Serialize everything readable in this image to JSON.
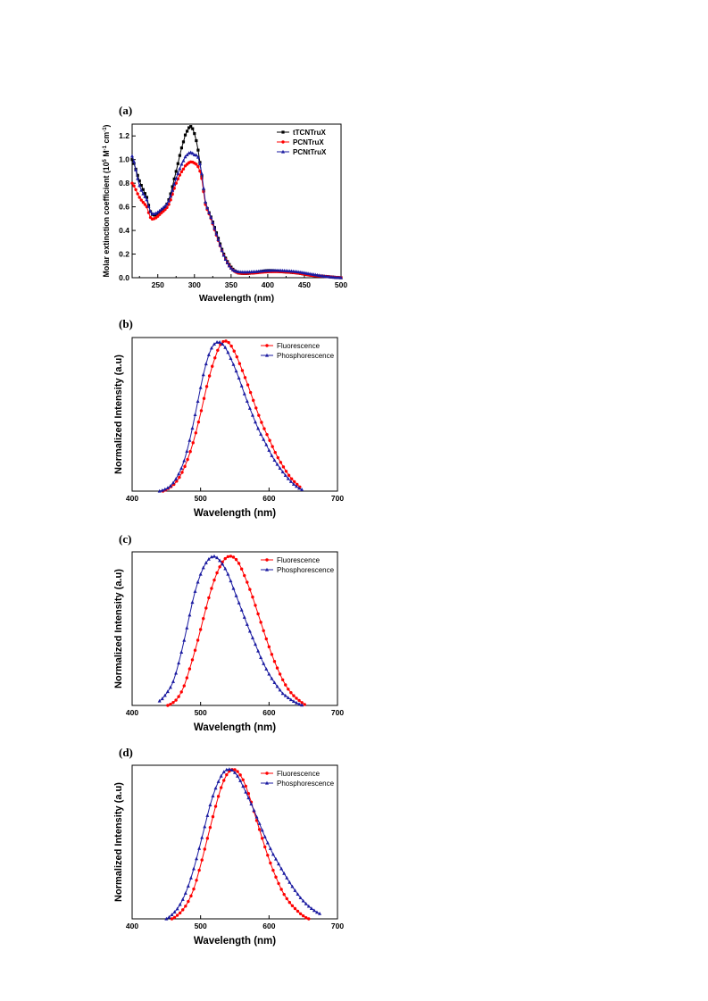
{
  "chart_data": [
    {
      "panel": "(a)",
      "type": "line",
      "xlabel": "Wavelength (nm)",
      "ylabel_main": "Molar extinction coefficient (10",
      "ylabel_sup1": "5",
      "ylabel_mid": " M",
      "ylabel_sup2": "-1",
      "ylabel_mid2": " cm",
      "ylabel_sup3": "-1",
      "ylabel_end": ")",
      "xlim": [
        215,
        500
      ],
      "ylim": [
        0,
        1.3
      ],
      "xticks": [
        250,
        300,
        350,
        400,
        450,
        500
      ],
      "yticks": [
        0.0,
        0.2,
        0.4,
        0.6,
        0.8,
        1.0,
        1.2
      ],
      "ytick_labels": [
        "0.0",
        "0.2",
        "0.4",
        "0.6",
        "0.8",
        "1.0",
        "1.2"
      ],
      "legend_position": "top-right",
      "legend_bold": true,
      "series": [
        {
          "name": "tTCNTruX",
          "color": "#000000",
          "marker": "square",
          "x": [
            215,
            225,
            235,
            240,
            245,
            255,
            265,
            275,
            285,
            290,
            295,
            300,
            305,
            310,
            315,
            320,
            330,
            340,
            350,
            360,
            380,
            400,
            420,
            440,
            460,
            480,
            500
          ],
          "y": [
            1.0,
            0.82,
            0.68,
            0.56,
            0.53,
            0.56,
            0.66,
            0.9,
            1.15,
            1.24,
            1.28,
            1.22,
            1.08,
            0.86,
            0.63,
            0.55,
            0.38,
            0.2,
            0.09,
            0.04,
            0.04,
            0.06,
            0.05,
            0.04,
            0.02,
            0.01,
            0.0
          ]
        },
        {
          "name": "PCNTruX",
          "color": "#ff0000",
          "marker": "circle",
          "x": [
            215,
            225,
            235,
            240,
            245,
            255,
            265,
            275,
            285,
            290,
            295,
            300,
            305,
            310,
            315,
            320,
            330,
            340,
            350,
            360,
            380,
            400,
            420,
            440,
            460,
            480,
            500
          ],
          "y": [
            0.8,
            0.68,
            0.6,
            0.51,
            0.5,
            0.55,
            0.62,
            0.8,
            0.92,
            0.96,
            0.98,
            0.97,
            0.94,
            0.84,
            0.62,
            0.54,
            0.36,
            0.19,
            0.08,
            0.04,
            0.04,
            0.05,
            0.05,
            0.04,
            0.02,
            0.01,
            0.0
          ]
        },
        {
          "name": "PCNtTruX",
          "color": "#1a1aa0",
          "marker": "triangle",
          "x": [
            215,
            225,
            235,
            240,
            245,
            255,
            265,
            275,
            285,
            290,
            295,
            300,
            305,
            310,
            315,
            320,
            330,
            340,
            350,
            360,
            380,
            400,
            420,
            440,
            460,
            480,
            500
          ],
          "y": [
            1.03,
            0.78,
            0.66,
            0.56,
            0.54,
            0.58,
            0.65,
            0.84,
            0.99,
            1.04,
            1.06,
            1.04,
            1.02,
            0.88,
            0.64,
            0.55,
            0.37,
            0.19,
            0.08,
            0.05,
            0.05,
            0.06,
            0.06,
            0.05,
            0.03,
            0.01,
            0.0
          ]
        }
      ]
    },
    {
      "panel": "(b)",
      "type": "line",
      "xlabel": "Wavelength (nm)",
      "ylabel": "Normalized Intensity (a.u)",
      "xlim": [
        400,
        700
      ],
      "ylim": [
        0,
        1.03
      ],
      "xticks": [
        400,
        500,
        600,
        700
      ],
      "legend_position": "top-right",
      "legend_bold": false,
      "series": [
        {
          "name": "Fluorescence",
          "color": "#ff0000",
          "marker": "circle",
          "x": [
            445,
            460,
            470,
            480,
            490,
            500,
            510,
            520,
            530,
            540,
            550,
            560,
            570,
            580,
            590,
            600,
            610,
            620,
            630,
            640,
            648
          ],
          "y": [
            0.0,
            0.04,
            0.1,
            0.2,
            0.34,
            0.52,
            0.72,
            0.88,
            0.99,
            1.0,
            0.93,
            0.82,
            0.7,
            0.57,
            0.45,
            0.35,
            0.25,
            0.17,
            0.1,
            0.05,
            0.02
          ]
        },
        {
          "name": "Phosphorescence",
          "color": "#1a1aa0",
          "marker": "triangle",
          "x": [
            440,
            455,
            465,
            475,
            485,
            495,
            505,
            515,
            525,
            535,
            545,
            555,
            565,
            575,
            585,
            595,
            605,
            615,
            625,
            635,
            648
          ],
          "y": [
            0.0,
            0.03,
            0.09,
            0.19,
            0.36,
            0.58,
            0.8,
            0.95,
            1.0,
            0.97,
            0.88,
            0.77,
            0.64,
            0.52,
            0.41,
            0.32,
            0.23,
            0.16,
            0.1,
            0.05,
            0.01
          ]
        }
      ]
    },
    {
      "panel": "(c)",
      "type": "line",
      "xlabel": "Wavelength (nm)",
      "ylabel": "Normalized Intensity (a.u)",
      "xlim": [
        400,
        700
      ],
      "ylim": [
        0,
        1.03
      ],
      "xticks": [
        400,
        500,
        600,
        700
      ],
      "legend_position": "top-right",
      "legend_bold": false,
      "series": [
        {
          "name": "Fluorescence",
          "color": "#ff0000",
          "marker": "circle",
          "x": [
            452,
            465,
            475,
            485,
            495,
            505,
            515,
            525,
            535,
            545,
            555,
            565,
            575,
            585,
            595,
            605,
            615,
            625,
            635,
            645,
            655
          ],
          "y": [
            0.0,
            0.04,
            0.12,
            0.26,
            0.42,
            0.6,
            0.77,
            0.9,
            0.98,
            1.0,
            0.96,
            0.86,
            0.74,
            0.6,
            0.46,
            0.33,
            0.22,
            0.13,
            0.07,
            0.03,
            0.0
          ]
        },
        {
          "name": "Phosphorescence",
          "color": "#1a1aa0",
          "marker": "triangle",
          "x": [
            440,
            450,
            460,
            470,
            480,
            490,
            500,
            510,
            520,
            530,
            540,
            550,
            560,
            570,
            580,
            590,
            600,
            610,
            620,
            635,
            650
          ],
          "y": [
            0.03,
            0.08,
            0.16,
            0.32,
            0.52,
            0.73,
            0.88,
            0.97,
            1.0,
            0.96,
            0.88,
            0.76,
            0.64,
            0.52,
            0.41,
            0.3,
            0.21,
            0.14,
            0.08,
            0.03,
            0.0
          ]
        }
      ]
    },
    {
      "panel": "(d)",
      "type": "line",
      "xlabel": "Wavelength (nm)",
      "ylabel": "Normalized Intensity (a.u)",
      "xlim": [
        400,
        700
      ],
      "ylim": [
        0,
        1.03
      ],
      "xticks": [
        400,
        500,
        600,
        700
      ],
      "legend_position": "top-right",
      "legend_bold": false,
      "series": [
        {
          "name": "Fluorescence",
          "color": "#ff0000",
          "marker": "circle",
          "x": [
            458,
            470,
            480,
            490,
            500,
            510,
            520,
            530,
            540,
            550,
            560,
            570,
            580,
            590,
            600,
            610,
            620,
            630,
            640,
            650,
            658
          ],
          "y": [
            0.0,
            0.04,
            0.1,
            0.2,
            0.36,
            0.54,
            0.72,
            0.88,
            0.98,
            1.0,
            0.95,
            0.84,
            0.69,
            0.54,
            0.4,
            0.28,
            0.18,
            0.11,
            0.06,
            0.02,
            0.0
          ]
        },
        {
          "name": "Phosphorescence",
          "color": "#1a1aa0",
          "marker": "triangle",
          "x": [
            450,
            465,
            475,
            485,
            495,
            505,
            515,
            525,
            535,
            545,
            555,
            565,
            575,
            585,
            595,
            605,
            620,
            635,
            650,
            665,
            677
          ],
          "y": [
            0.0,
            0.06,
            0.14,
            0.26,
            0.42,
            0.6,
            0.78,
            0.91,
            0.99,
            1.0,
            0.95,
            0.86,
            0.76,
            0.65,
            0.54,
            0.44,
            0.32,
            0.21,
            0.12,
            0.06,
            0.03
          ]
        }
      ]
    }
  ]
}
